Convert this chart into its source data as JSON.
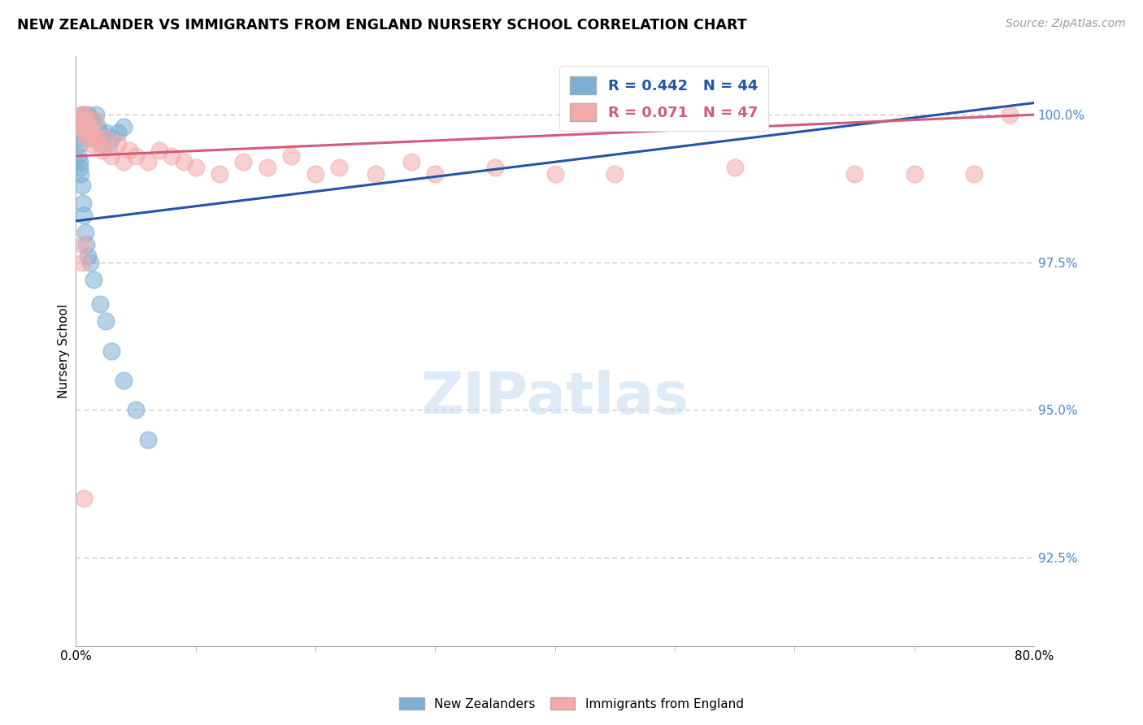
{
  "title": "NEW ZEALANDER VS IMMIGRANTS FROM ENGLAND NURSERY SCHOOL CORRELATION CHART",
  "source_text": "Source: ZipAtlas.com",
  "ylabel": "Nursery School",
  "x_min": 0.0,
  "x_max": 80.0,
  "y_min": 91.0,
  "y_max": 101.0,
  "ytick_labels": [
    "92.5%",
    "95.0%",
    "97.5%",
    "100.0%"
  ],
  "ytick_values": [
    92.5,
    95.0,
    97.5,
    100.0
  ],
  "xtick_labels": [
    "0.0%",
    "80.0%"
  ],
  "xtick_values": [
    0.0,
    80.0
  ],
  "legend_label1": "New Zealanders",
  "legend_label2": "Immigrants from England",
  "r1": 0.442,
  "n1": 44,
  "r2": 0.071,
  "n2": 47,
  "color_blue": "#7BAFD4",
  "color_blue_dark": "#2255AA",
  "color_pink": "#F4AAAA",
  "color_pink_dark": "#D45A7A",
  "blue_scatter_x": [
    0.2,
    0.3,
    0.4,
    0.5,
    0.5,
    0.6,
    0.7,
    0.8,
    0.9,
    1.0,
    1.1,
    1.2,
    1.3,
    1.4,
    1.5,
    1.6,
    1.7,
    1.8,
    2.0,
    2.2,
    2.4,
    2.5,
    2.8,
    3.0,
    3.5,
    4.0,
    0.3,
    0.4,
    0.5,
    0.6,
    0.7,
    0.8,
    0.9,
    1.0,
    1.2,
    1.5,
    2.0,
    2.5,
    3.0,
    4.0,
    5.0,
    6.0,
    0.2,
    0.3
  ],
  "blue_scatter_y": [
    99.6,
    99.5,
    99.8,
    99.7,
    100.0,
    99.9,
    100.0,
    99.8,
    99.7,
    100.0,
    99.6,
    99.9,
    99.8,
    99.7,
    99.9,
    99.6,
    100.0,
    99.8,
    99.7,
    99.5,
    99.6,
    99.7,
    99.5,
    99.6,
    99.7,
    99.8,
    99.2,
    99.0,
    98.8,
    98.5,
    98.3,
    98.0,
    97.8,
    97.6,
    97.5,
    97.2,
    96.8,
    96.5,
    96.0,
    95.5,
    95.0,
    94.5,
    99.3,
    99.1
  ],
  "pink_scatter_x": [
    0.3,
    0.4,
    0.5,
    0.6,
    0.7,
    0.8,
    0.9,
    1.0,
    1.1,
    1.2,
    1.3,
    1.4,
    1.6,
    1.8,
    2.0,
    2.2,
    2.5,
    3.0,
    3.5,
    4.0,
    4.5,
    5.0,
    6.0,
    7.0,
    8.0,
    9.0,
    10.0,
    12.0,
    14.0,
    16.0,
    18.0,
    20.0,
    22.0,
    25.0,
    28.0,
    30.0,
    35.0,
    40.0,
    45.0,
    55.0,
    65.0,
    70.0,
    75.0,
    78.0,
    0.5,
    0.6,
    0.7
  ],
  "pink_scatter_y": [
    99.8,
    99.9,
    100.0,
    99.7,
    100.0,
    99.8,
    99.9,
    99.7,
    99.6,
    99.8,
    99.5,
    99.7,
    99.9,
    99.6,
    99.5,
    99.4,
    99.6,
    99.3,
    99.5,
    99.2,
    99.4,
    99.3,
    99.2,
    99.4,
    99.3,
    99.2,
    99.1,
    99.0,
    99.2,
    99.1,
    99.3,
    99.0,
    99.1,
    99.0,
    99.2,
    99.0,
    99.1,
    99.0,
    99.0,
    99.1,
    99.0,
    99.0,
    99.0,
    100.0,
    97.5,
    97.8,
    93.5
  ],
  "reg_blue_x0": 0.0,
  "reg_blue_x1": 80.0,
  "reg_blue_y0": 98.2,
  "reg_blue_y1": 100.2,
  "reg_pink_x0": 0.0,
  "reg_pink_x1": 80.0,
  "reg_pink_y0": 99.3,
  "reg_pink_y1": 100.0
}
